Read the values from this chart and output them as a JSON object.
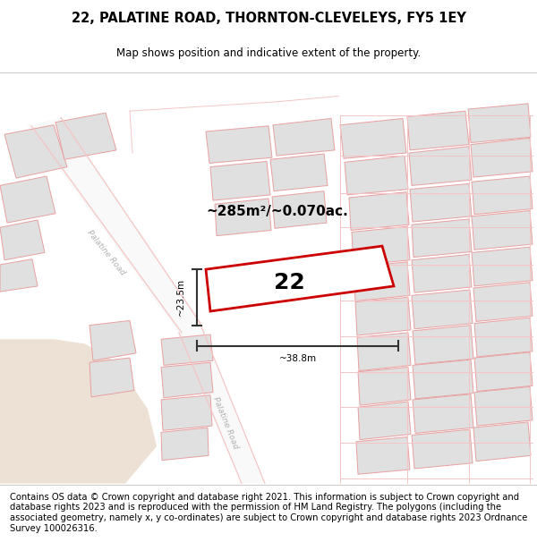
{
  "title": "22, PALATINE ROAD, THORNTON-CLEVELEYS, FY5 1EY",
  "subtitle": "Map shows position and indicative extent of the property.",
  "area_label": "~285m²/~0.070ac.",
  "property_number": "22",
  "dim_width": "~38.8m",
  "dim_height": "~23.5m",
  "footer": "Contains OS data © Crown copyright and database right 2021. This information is subject to Crown copyright and database rights 2023 and is reproduced with the permission of HM Land Registry. The polygons (including the associated geometry, namely x, y co-ordinates) are subject to Crown copyright and database rights 2023 Ordnance Survey 100026316.",
  "map_bg": "#f8f8f8",
  "road_color": "#f5c5c5",
  "building_fill": "#e0e0e0",
  "building_stroke": "#e8a0a0",
  "highlight_stroke": "#cc0000",
  "open_space": "#ede0d4",
  "title_fontsize": 10.5,
  "subtitle_fontsize": 8.5,
  "footer_fontsize": 7.2,
  "road_label_color": "#b0b0b0",
  "dim_line_color": "#333333"
}
